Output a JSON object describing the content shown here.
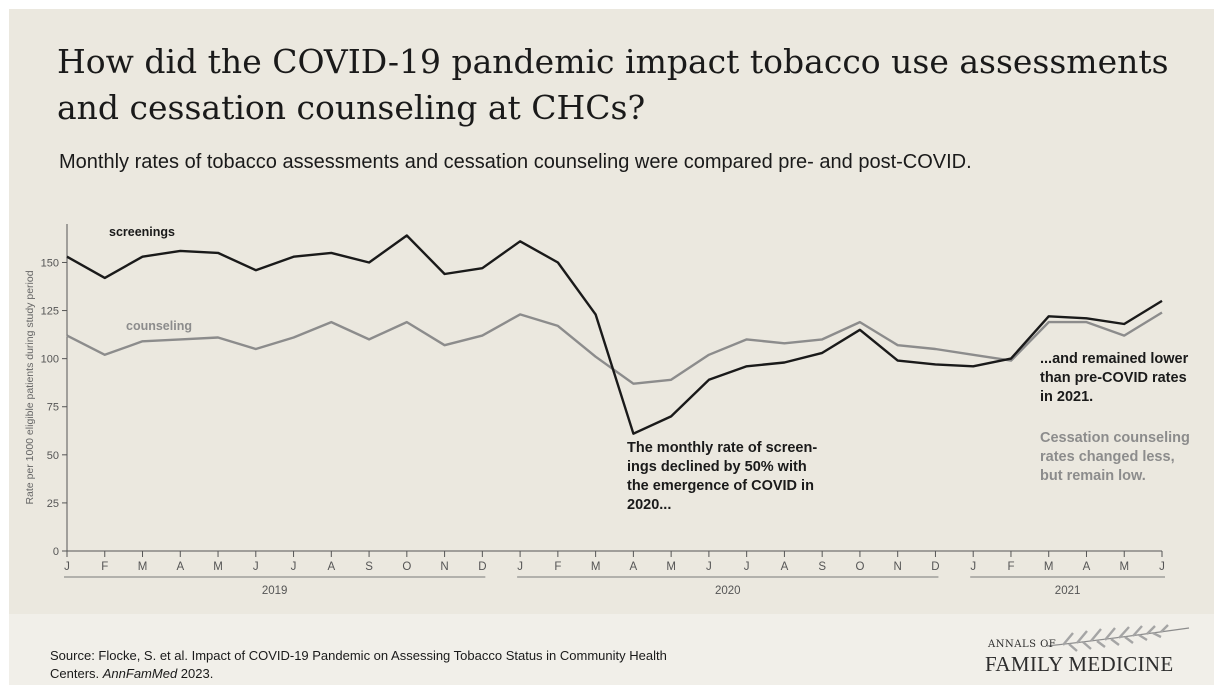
{
  "title": "How did the COVID-19 pandemic impact tobacco use assessments and cessation counseling at CHCs?",
  "subtitle": "Monthly rates of tobacco assessments and cessation counseling were compared pre- and post-COVID.",
  "source": {
    "prefix": "Source: Flocke, S. et al. Impact of COVID-19 Pandemic on Assessing Tobacco Status in Community Health Centers. ",
    "journal": "AnnFamMed",
    "suffix": " 2023."
  },
  "logo": {
    "line1": "ANNALS OF",
    "line2": "FAMILY MEDICINE"
  },
  "colors": {
    "background": "#ebe8df",
    "screenings": "#1a1a1a",
    "counseling": "#8c8c8c",
    "axis": "#555555"
  },
  "chart_data": {
    "type": "line",
    "ylabel": "Rate per 1000 eligible patients during study period",
    "xlabel": "",
    "ylim": [
      0,
      170
    ],
    "yticks": [
      0,
      25,
      50,
      75,
      100,
      125,
      150
    ],
    "grid": false,
    "categories": [
      "J",
      "F",
      "M",
      "A",
      "M",
      "J",
      "J",
      "A",
      "S",
      "O",
      "N",
      "D",
      "J",
      "F",
      "M",
      "A",
      "M",
      "J",
      "J",
      "A",
      "S",
      "O",
      "N",
      "D",
      "J",
      "F",
      "M",
      "A",
      "M",
      "J"
    ],
    "year_groups": [
      {
        "label": "2019",
        "start": 0,
        "end": 11
      },
      {
        "label": "2020",
        "start": 12,
        "end": 23
      },
      {
        "label": "2021",
        "start": 24,
        "end": 29
      }
    ],
    "series": [
      {
        "name": "screenings",
        "values": [
          153,
          142,
          153,
          156,
          155,
          146,
          153,
          155,
          150,
          164,
          144,
          147,
          161,
          150,
          123,
          61,
          70,
          89,
          96,
          98,
          103,
          115,
          99,
          97,
          96,
          100,
          122,
          121,
          118,
          130
        ]
      },
      {
        "name": "counseling",
        "values": [
          112,
          102,
          109,
          110,
          111,
          105,
          111,
          119,
          110,
          119,
          107,
          112,
          123,
          117,
          101,
          87,
          89,
          102,
          110,
          108,
          110,
          119,
          107,
          105,
          102,
          99,
          119,
          119,
          112,
          124
        ]
      }
    ],
    "annotations": [
      {
        "id": "decline",
        "lines": [
          "The monthly rate of screen-",
          "ings declined by 50% with",
          "the emergence of COVID in",
          "2020..."
        ]
      },
      {
        "id": "remained",
        "lines": [
          "...and remained lower",
          "than pre-COVID rates",
          "in 2021."
        ]
      },
      {
        "id": "counseling-note",
        "lines": [
          "Cessation counseling",
          "rates changed less,",
          "but remain low."
        ]
      }
    ]
  }
}
